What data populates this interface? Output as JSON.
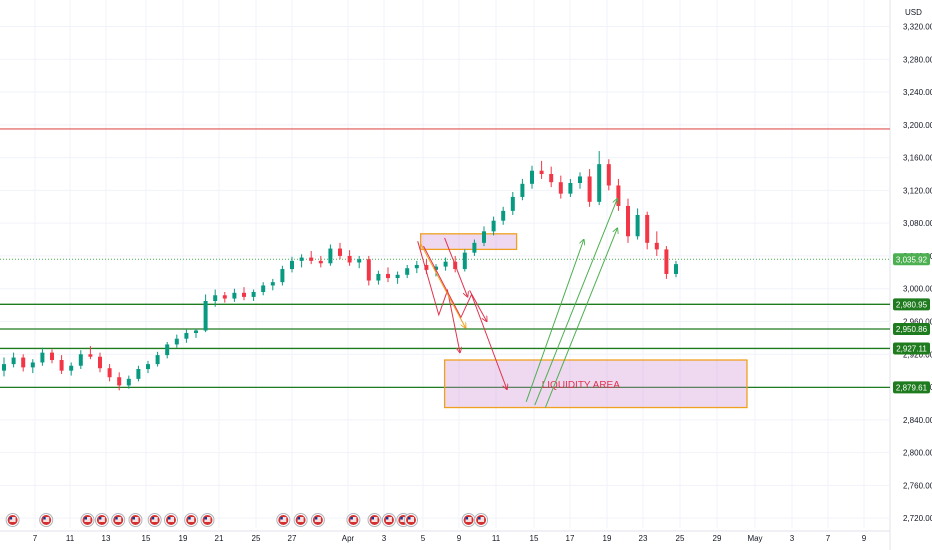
{
  "chart_data": {
    "type": "candlestick",
    "currency": "USD",
    "y_ticks": [
      2720,
      2760,
      2800,
      2840,
      2880,
      2920,
      2960,
      3000,
      3040,
      3080,
      3120,
      3160,
      3200,
      3240,
      3280,
      3320
    ],
    "y_range": [
      2708,
      3345
    ],
    "x_ticks": [
      "7",
      "11",
      "13",
      "15",
      "19",
      "21",
      "25",
      "27",
      "Apr",
      "3",
      "5",
      "9",
      "11",
      "15",
      "17",
      "19",
      "23",
      "25",
      "29",
      "May",
      "3",
      "7",
      "9"
    ],
    "price_tags": [
      {
        "label": "3,035.92",
        "value": 3035.92,
        "color": "#4caf50"
      },
      {
        "label": "2,980.95",
        "value": 2980.95,
        "color": "#1e7b1e"
      },
      {
        "label": "2,950.86",
        "value": 2950.86,
        "color": "#1e7b1e"
      },
      {
        "label": "2,927.11",
        "value": 2927.11,
        "color": "#1e7b1e"
      },
      {
        "label": "2,879.61",
        "value": 2879.61,
        "color": "#1e7b1e"
      }
    ],
    "horizontal_lines": [
      {
        "value": 3195,
        "color": "#e57373"
      },
      {
        "value": 2980.95,
        "color": "#1e7b1e"
      },
      {
        "value": 2950.86,
        "color": "#1e7b1e"
      },
      {
        "value": 2927.11,
        "color": "#1e7b1e"
      },
      {
        "value": 2879.61,
        "color": "#1e7b1e"
      }
    ],
    "zones": [
      {
        "name": "supply",
        "label": "",
        "x_start": 43.5,
        "x_end": 53.5,
        "y_top": 3067,
        "y_bottom": 3048
      },
      {
        "name": "liquidity",
        "label": "LIQUIDITY AREA",
        "x_start": 46,
        "x_end": 77.5,
        "y_top": 2913,
        "y_bottom": 2855
      }
    ],
    "candles": [
      [
        2900,
        2916,
        2893,
        2908
      ],
      [
        2908,
        2922,
        2904,
        2916
      ],
      [
        2916,
        2920,
        2899,
        2904
      ],
      [
        2904,
        2914,
        2897,
        2910
      ],
      [
        2910,
        2928,
        2906,
        2922
      ],
      [
        2922,
        2926,
        2909,
        2913
      ],
      [
        2913,
        2919,
        2896,
        2900
      ],
      [
        2900,
        2910,
        2894,
        2906
      ],
      [
        2906,
        2925,
        2902,
        2920
      ],
      [
        2920,
        2930,
        2914,
        2917
      ],
      [
        2917,
        2922,
        2898,
        2903
      ],
      [
        2903,
        2908,
        2887,
        2892
      ],
      [
        2892,
        2898,
        2876,
        2882
      ],
      [
        2882,
        2894,
        2878,
        2890
      ],
      [
        2890,
        2906,
        2887,
        2902
      ],
      [
        2902,
        2912,
        2897,
        2908
      ],
      [
        2908,
        2923,
        2905,
        2919
      ],
      [
        2919,
        2935,
        2915,
        2932
      ],
      [
        2932,
        2944,
        2928,
        2939
      ],
      [
        2939,
        2950,
        2934,
        2946
      ],
      [
        2946,
        2951,
        2940,
        2949
      ],
      [
        2949,
        2993,
        2947,
        2985
      ],
      [
        2985,
        2999,
        2978,
        2992
      ],
      [
        2992,
        2996,
        2983,
        2988
      ],
      [
        2988,
        3000,
        2984,
        2995
      ],
      [
        2995,
        3002,
        2986,
        2990
      ],
      [
        2990,
        2999,
        2985,
        2996
      ],
      [
        2996,
        3008,
        2992,
        3004
      ],
      [
        3004,
        3012,
        2998,
        3008
      ],
      [
        3008,
        3028,
        3004,
        3024
      ],
      [
        3024,
        3039,
        3020,
        3034
      ],
      [
        3034,
        3042,
        3026,
        3038
      ],
      [
        3038,
        3046,
        3030,
        3034
      ],
      [
        3034,
        3040,
        3026,
        3031
      ],
      [
        3031,
        3054,
        3028,
        3049
      ],
      [
        3049,
        3056,
        3036,
        3040
      ],
      [
        3040,
        3047,
        3028,
        3032
      ],
      [
        3032,
        3040,
        3025,
        3036
      ],
      [
        3036,
        3040,
        3004,
        3010
      ],
      [
        3010,
        3022,
        3005,
        3018
      ],
      [
        3018,
        3026,
        3008,
        3013
      ],
      [
        3013,
        3021,
        3006,
        3017
      ],
      [
        3017,
        3029,
        3013,
        3025
      ],
      [
        3025,
        3034,
        3019,
        3029
      ],
      [
        3029,
        3036,
        3018,
        3023
      ],
      [
        3023,
        3030,
        3015,
        3027
      ],
      [
        3027,
        3038,
        3022,
        3033
      ],
      [
        3033,
        3040,
        3020,
        3024
      ],
      [
        3024,
        3048,
        3021,
        3044
      ],
      [
        3044,
        3060,
        3040,
        3056
      ],
      [
        3056,
        3076,
        3052,
        3070
      ],
      [
        3070,
        3088,
        3065,
        3083
      ],
      [
        3083,
        3100,
        3078,
        3095
      ],
      [
        3095,
        3118,
        3090,
        3112
      ],
      [
        3112,
        3134,
        3108,
        3128
      ],
      [
        3128,
        3150,
        3122,
        3144
      ],
      [
        3144,
        3156,
        3134,
        3140
      ],
      [
        3140,
        3149,
        3124,
        3130
      ],
      [
        3130,
        3138,
        3110,
        3116
      ],
      [
        3116,
        3134,
        3112,
        3129
      ],
      [
        3129,
        3142,
        3122,
        3137
      ],
      [
        3137,
        3146,
        3100,
        3106
      ],
      [
        3106,
        3168,
        3102,
        3152
      ],
      [
        3152,
        3158,
        3120,
        3126
      ],
      [
        3126,
        3134,
        3095,
        3101
      ],
      [
        3101,
        3110,
        3056,
        3064
      ],
      [
        3064,
        3098,
        3060,
        3090
      ],
      [
        3090,
        3094,
        3048,
        3056
      ],
      [
        3056,
        3070,
        3040,
        3048
      ],
      [
        3048,
        3052,
        3012,
        3018
      ],
      [
        3018,
        3034,
        3014,
        3030
      ]
    ],
    "arrows": [
      {
        "color": "#e0334d",
        "points": [
          [
            43.2,
            3058
          ],
          [
            45.4,
            2968
          ],
          [
            46.3,
            2998
          ],
          [
            47.6,
            2922
          ]
        ]
      },
      {
        "color": "#e0334d",
        "points": [
          [
            43.8,
            3052
          ],
          [
            47.7,
            2965
          ],
          [
            48.8,
            2993
          ],
          [
            52.5,
            2877
          ]
        ]
      },
      {
        "color": "#f0a020",
        "points": [
          [
            43.5,
            3055
          ],
          [
            48.2,
            2952
          ]
        ]
      },
      {
        "color": "#e0334d",
        "points": [
          [
            46.0,
            3062
          ],
          [
            48.4,
            2990
          ]
        ]
      },
      {
        "color": "#e0334d",
        "points": [
          [
            48.6,
            2998
          ],
          [
            50.4,
            2960
          ]
        ]
      },
      {
        "color": "#4caf50",
        "points": [
          [
            54.5,
            2862
          ],
          [
            60.5,
            3060
          ]
        ]
      },
      {
        "color": "#4caf50",
        "points": [
          [
            55.4,
            2858
          ],
          [
            64.0,
            3110
          ]
        ]
      },
      {
        "color": "#4caf50",
        "points": [
          [
            56.5,
            2855
          ],
          [
            64.0,
            3074
          ]
        ]
      }
    ],
    "event_markers": [
      1,
      4.5,
      8.8,
      10.3,
      12,
      13.8,
      15.8,
      17.5,
      19.6,
      21.3,
      29.2,
      31,
      32.8,
      36.5,
      38.7,
      40.2,
      41.7,
      42.5,
      48.5,
      49.8
    ]
  }
}
